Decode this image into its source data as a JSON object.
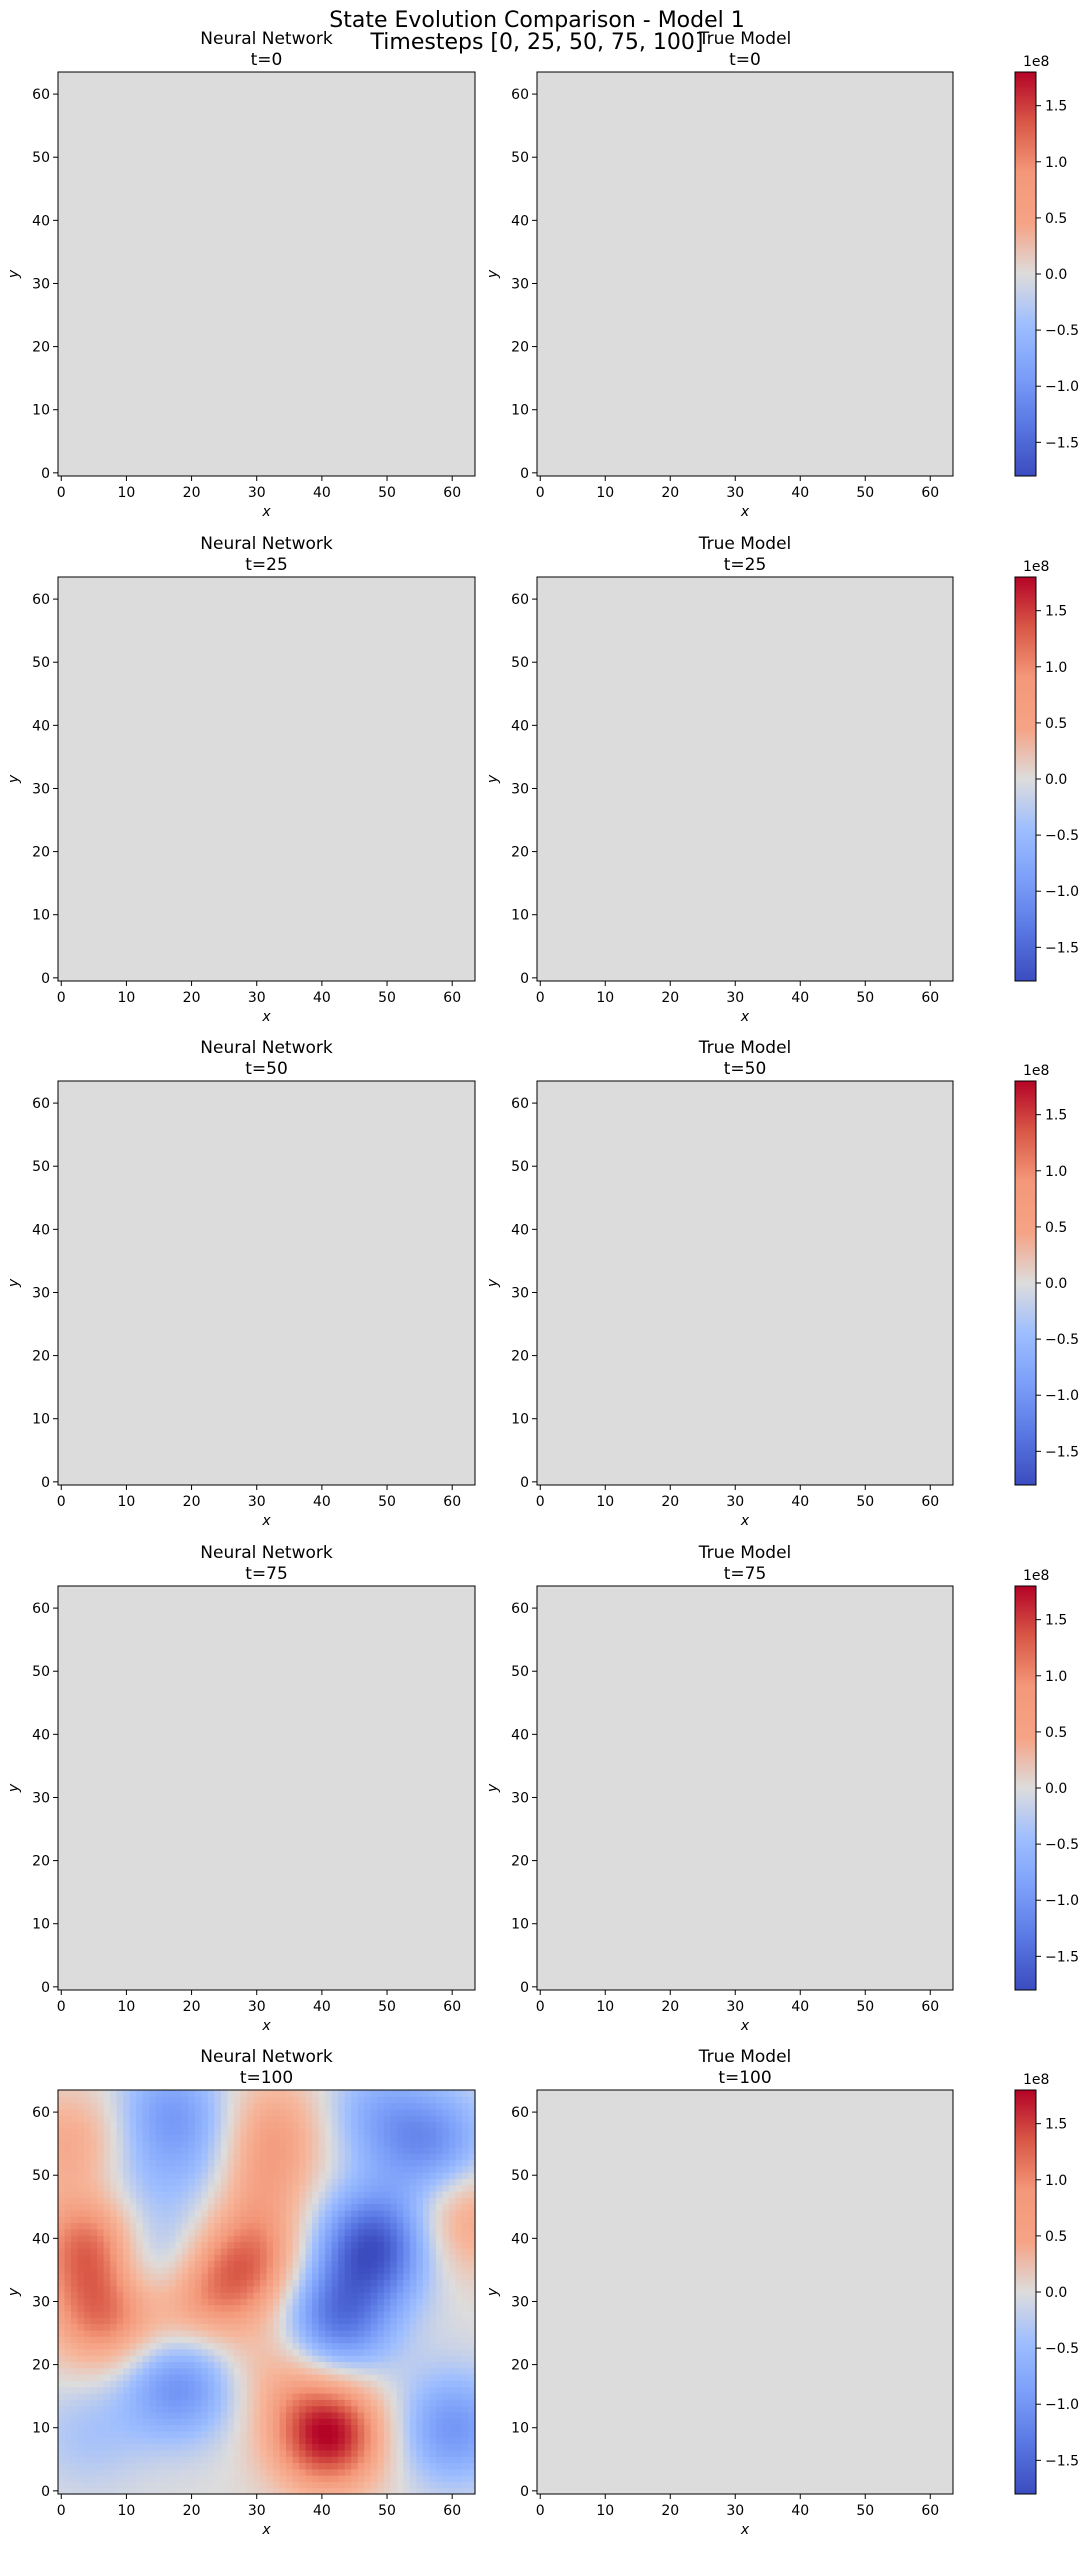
{
  "figure": {
    "title_line1": "State Evolution Comparison - Model 1",
    "title_line2": "Timesteps [0, 25, 50, 75, 100]"
  },
  "colors": {
    "cmap": "coolwarm",
    "zero_gray": "#dddcdc",
    "low": "#3b4cc0",
    "high": "#b40426"
  },
  "chart_data": [
    {
      "type": "heatmap",
      "title": "Neural Network\nt=0",
      "xlabel": "x",
      "ylabel": "y",
      "xlim": [
        0,
        63
      ],
      "ylim": [
        0,
        63
      ],
      "x_ticks": [
        0,
        10,
        20,
        30,
        40,
        50,
        60
      ],
      "y_ticks": [
        0,
        10,
        20,
        30,
        40,
        50,
        60
      ],
      "grid": false,
      "values": "uniform 0"
    },
    {
      "type": "heatmap",
      "title": "True Model\nt=0",
      "xlabel": "x",
      "ylabel": "y",
      "xlim": [
        0,
        63
      ],
      "ylim": [
        0,
        63
      ],
      "x_ticks": [
        0,
        10,
        20,
        30,
        40,
        50,
        60
      ],
      "y_ticks": [
        0,
        10,
        20,
        30,
        40,
        50,
        60
      ],
      "grid": false,
      "values": "uniform 0"
    },
    {
      "type": "colorbar",
      "scale_label": "1e8",
      "range": [
        -1.8,
        1.8
      ],
      "ticks": [
        -1.5,
        -1.0,
        -0.5,
        0.0,
        0.5,
        1.0,
        1.5
      ],
      "tick_labels": [
        "−1.5",
        "−1.0",
        "−0.5",
        "0.0",
        "0.5",
        "1.0",
        "1.5"
      ]
    },
    {
      "type": "heatmap",
      "title": "Neural Network\nt=25",
      "xlabel": "x",
      "ylabel": "y",
      "xlim": [
        0,
        63
      ],
      "ylim": [
        0,
        63
      ],
      "x_ticks": [
        0,
        10,
        20,
        30,
        40,
        50,
        60
      ],
      "y_ticks": [
        0,
        10,
        20,
        30,
        40,
        50,
        60
      ],
      "grid": false,
      "values": "uniform 0"
    },
    {
      "type": "heatmap",
      "title": "True Model\nt=25",
      "xlabel": "x",
      "ylabel": "y",
      "xlim": [
        0,
        63
      ],
      "ylim": [
        0,
        63
      ],
      "x_ticks": [
        0,
        10,
        20,
        30,
        40,
        50,
        60
      ],
      "y_ticks": [
        0,
        10,
        20,
        30,
        40,
        50,
        60
      ],
      "grid": false,
      "values": "uniform 0"
    },
    {
      "type": "colorbar",
      "scale_label": "1e8",
      "range": [
        -1.8,
        1.8
      ],
      "ticks": [
        -1.5,
        -1.0,
        -0.5,
        0.0,
        0.5,
        1.0,
        1.5
      ],
      "tick_labels": [
        "−1.5",
        "−1.0",
        "−0.5",
        "0.0",
        "0.5",
        "1.0",
        "1.5"
      ]
    },
    {
      "type": "heatmap",
      "title": "Neural Network\nt=50",
      "xlabel": "x",
      "ylabel": "y",
      "xlim": [
        0,
        63
      ],
      "ylim": [
        0,
        63
      ],
      "x_ticks": [
        0,
        10,
        20,
        30,
        40,
        50,
        60
      ],
      "y_ticks": [
        0,
        10,
        20,
        30,
        40,
        50,
        60
      ],
      "grid": false,
      "values": "uniform 0"
    },
    {
      "type": "heatmap",
      "title": "True Model\nt=50",
      "xlabel": "x",
      "ylabel": "y",
      "xlim": [
        0,
        63
      ],
      "ylim": [
        0,
        63
      ],
      "x_ticks": [
        0,
        10,
        20,
        30,
        40,
        50,
        60
      ],
      "y_ticks": [
        0,
        10,
        20,
        30,
        40,
        50,
        60
      ],
      "grid": false,
      "values": "uniform 0"
    },
    {
      "type": "colorbar",
      "scale_label": "1e8",
      "range": [
        -1.8,
        1.8
      ],
      "ticks": [
        -1.5,
        -1.0,
        -0.5,
        0.0,
        0.5,
        1.0,
        1.5
      ],
      "tick_labels": [
        "−1.5",
        "−1.0",
        "−0.5",
        "0.0",
        "0.5",
        "1.0",
        "1.5"
      ]
    },
    {
      "type": "heatmap",
      "title": "Neural Network\nt=75",
      "xlabel": "x",
      "ylabel": "y",
      "xlim": [
        0,
        63
      ],
      "ylim": [
        0,
        63
      ],
      "x_ticks": [
        0,
        10,
        20,
        30,
        40,
        50,
        60
      ],
      "y_ticks": [
        0,
        10,
        20,
        30,
        40,
        50,
        60
      ],
      "grid": false,
      "values": "uniform 0"
    },
    {
      "type": "heatmap",
      "title": "True Model\nt=75",
      "xlabel": "x",
      "ylabel": "y",
      "xlim": [
        0,
        63
      ],
      "ylim": [
        0,
        63
      ],
      "x_ticks": [
        0,
        10,
        20,
        30,
        40,
        50,
        60
      ],
      "y_ticks": [
        0,
        10,
        20,
        30,
        40,
        50,
        60
      ],
      "grid": false,
      "values": "uniform 0"
    },
    {
      "type": "colorbar",
      "scale_label": "1e8",
      "range": [
        -1.8,
        1.8
      ],
      "ticks": [
        -1.5,
        -1.0,
        -0.5,
        0.0,
        0.5,
        1.0,
        1.5
      ],
      "tick_labels": [
        "−1.5",
        "−1.0",
        "−0.5",
        "0.0",
        "0.5",
        "1.0",
        "1.5"
      ]
    },
    {
      "type": "heatmap",
      "title": "Neural Network\nt=100",
      "xlabel": "x",
      "ylabel": "y",
      "xlim": [
        0,
        63
      ],
      "ylim": [
        0,
        63
      ],
      "x_ticks": [
        0,
        10,
        20,
        30,
        40,
        50,
        60
      ],
      "y_ticks": [
        0,
        10,
        20,
        30,
        40,
        50,
        60
      ],
      "grid": false,
      "values": "smooth random field, approx. -1.7e8 to +1.8e8",
      "blobs_data_units": [
        {
          "x": 41,
          "y": 9,
          "value": 1.8
        },
        {
          "x": 5,
          "y": 39,
          "value": 1.35
        },
        {
          "x": 7,
          "y": 28,
          "value": 1.2
        },
        {
          "x": 20,
          "y": 31,
          "value": 1.0
        },
        {
          "x": 29,
          "y": 36,
          "value": 1.1
        },
        {
          "x": 29,
          "y": 49,
          "value": 0.85
        },
        {
          "x": 2,
          "y": 55,
          "value": 0.7
        },
        {
          "x": 33,
          "y": 58,
          "value": 0.65
        },
        {
          "x": 62,
          "y": 43,
          "value": 0.75
        },
        {
          "x": 34,
          "y": 20,
          "value": 0.5
        },
        {
          "x": 48,
          "y": 39,
          "value": -1.7
        },
        {
          "x": 42,
          "y": 27,
          "value": -1.4
        },
        {
          "x": 57,
          "y": 55,
          "value": -1.0
        },
        {
          "x": 14,
          "y": 35,
          "value": -1.1
        },
        {
          "x": 18,
          "y": 17,
          "value": -1.1
        },
        {
          "x": 17,
          "y": 60,
          "value": -0.9
        },
        {
          "x": 48,
          "y": 60,
          "value": -0.6
        },
        {
          "x": 24,
          "y": 50,
          "value": -0.6
        },
        {
          "x": 60,
          "y": 10,
          "value": -1.0
        },
        {
          "x": 4,
          "y": 9,
          "value": -0.35
        },
        {
          "x": 10,
          "y": 48,
          "value": -0.4
        }
      ]
    },
    {
      "type": "heatmap",
      "title": "True Model\nt=100",
      "xlabel": "x",
      "ylabel": "y",
      "xlim": [
        0,
        63
      ],
      "ylim": [
        0,
        63
      ],
      "x_ticks": [
        0,
        10,
        20,
        30,
        40,
        50,
        60
      ],
      "y_ticks": [
        0,
        10,
        20,
        30,
        40,
        50,
        60
      ],
      "grid": false,
      "values": "uniform 0"
    },
    {
      "type": "colorbar",
      "scale_label": "1e8",
      "range": [
        -1.8,
        1.8
      ],
      "ticks": [
        -1.5,
        -1.0,
        -0.5,
        0.0,
        0.5,
        1.0,
        1.5
      ],
      "tick_labels": [
        "−1.5",
        "−1.0",
        "−0.5",
        "0.0",
        "0.5",
        "1.0",
        "1.5"
      ]
    }
  ]
}
